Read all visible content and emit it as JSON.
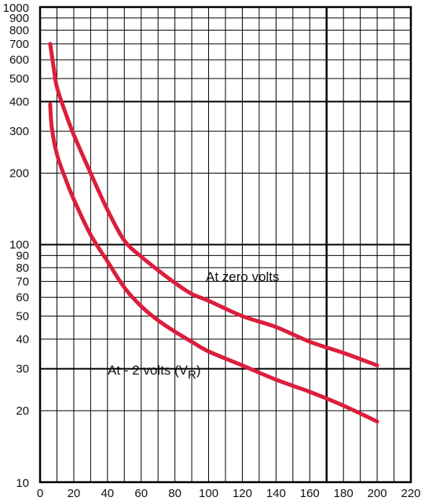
{
  "chart_data": {
    "type": "line",
    "title": "",
    "xlabel": "",
    "ylabel": "",
    "x_scale": "linear",
    "y_scale": "log",
    "xlim": [
      0,
      220
    ],
    "ylim": [
      10,
      1000
    ],
    "grid": true,
    "x_ticks": [
      0,
      20,
      40,
      60,
      80,
      100,
      120,
      140,
      160,
      180,
      200,
      220
    ],
    "x_tick_labels": [
      "0",
      "20",
      "40",
      "60",
      "80",
      "100",
      "120",
      "140",
      "160",
      "180",
      "200",
      "220"
    ],
    "y_ticks": [
      10,
      20,
      30,
      40,
      50,
      60,
      70,
      80,
      90,
      100,
      200,
      300,
      400,
      500,
      600,
      700,
      800,
      900,
      1000
    ],
    "y_tick_labels": [
      "10",
      "20",
      "30",
      "40",
      "50",
      "60",
      "70",
      "80",
      "90",
      "100",
      "200",
      "300",
      "400",
      "500",
      "600",
      "700",
      "800",
      "900",
      "1000"
    ],
    "emphasis_vertical_lines": [
      170
    ],
    "emphasis_horizontal_lines": [
      30,
      100,
      400
    ],
    "series": [
      {
        "name": "At zero volts",
        "color": "#dc1e3c",
        "x": [
          6,
          8,
          10,
          15,
          20,
          30,
          40,
          50,
          60,
          70,
          80,
          90,
          100,
          120,
          140,
          160,
          180,
          200
        ],
        "y": [
          700,
          560,
          460,
          360,
          290,
          200,
          140,
          104,
          89,
          78,
          69,
          62,
          58,
          50,
          45,
          39,
          35,
          31
        ]
      },
      {
        "name": "At - 2 volts (V",
        "name_subscript": "R",
        "name_suffix": ")",
        "color": "#dc1e3c",
        "x": [
          6,
          7,
          10,
          15,
          20,
          30,
          40,
          50,
          60,
          70,
          80,
          90,
          100,
          120,
          140,
          160,
          180,
          200
        ],
        "y": [
          390,
          310,
          240,
          190,
          155,
          110,
          85,
          66,
          55,
          48,
          43,
          39,
          35.5,
          31,
          27,
          24,
          21,
          18
        ]
      }
    ]
  }
}
